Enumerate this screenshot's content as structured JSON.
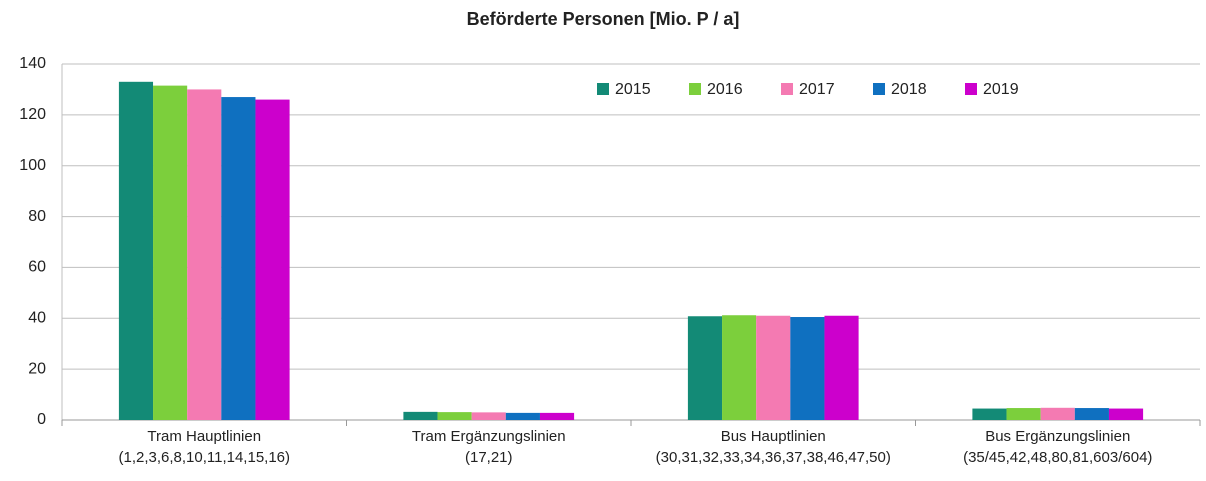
{
  "chart_data": {
    "type": "bar",
    "title": "Beförderte Personen [Mio. P / a]",
    "categories": [
      "Tram Hauptlinien\n(1,2,3,6,8,10,11,14,15,16)",
      "Tram Ergänzungslinien\n(17,21)",
      "Bus Hauptlinien\n(30,31,32,33,34,36,37,38,46,47,50)",
      "Bus Ergänzungslinien\n(35/45,42,48,80,81,603/604)"
    ],
    "series": [
      {
        "name": "2015",
        "color": "#138a76",
        "values": [
          133,
          3.2,
          40.8,
          4.5
        ]
      },
      {
        "name": "2016",
        "color": "#7ccf3c",
        "values": [
          131.5,
          3.1,
          41.2,
          4.7
        ]
      },
      {
        "name": "2017",
        "color": "#f47ab2",
        "values": [
          130,
          3.0,
          41.0,
          4.8
        ]
      },
      {
        "name": "2018",
        "color": "#0f70c0",
        "values": [
          127,
          2.8,
          40.5,
          4.7
        ]
      },
      {
        "name": "2019",
        "color": "#cc00cc",
        "values": [
          126,
          2.8,
          41.0,
          4.5
        ]
      }
    ],
    "ylim": [
      0,
      140
    ],
    "yticks": [
      0,
      20,
      40,
      60,
      80,
      100,
      120,
      140
    ],
    "grid": true,
    "legend": "top-right"
  }
}
